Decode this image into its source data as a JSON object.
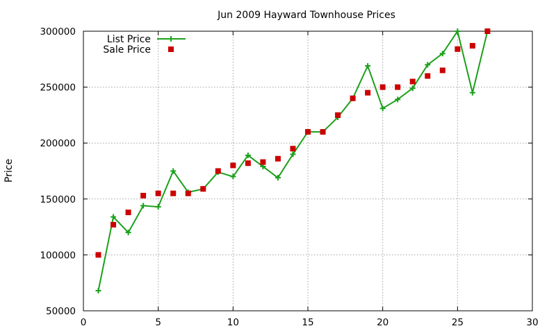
{
  "chart_data": {
    "type": "line",
    "title": "Jun 2009 Hayward Townhouse Prices",
    "xlabel": "",
    "ylabel": "Price",
    "xlim": [
      0,
      30
    ],
    "ylim": [
      50000,
      300000
    ],
    "x_ticks": [
      0,
      5,
      10,
      15,
      20,
      25,
      30
    ],
    "y_ticks": [
      50000,
      100000,
      150000,
      200000,
      250000,
      300000
    ],
    "grid": true,
    "legend_position": "top-left",
    "series": [
      {
        "name": "List Price",
        "style": "line-with-plus-markers",
        "color": "#1aa01a",
        "x": [
          1,
          2,
          3,
          4,
          5,
          6,
          7,
          8,
          9,
          10,
          11,
          12,
          13,
          14,
          15,
          16,
          17,
          18,
          19,
          20,
          21,
          22,
          23,
          24,
          25,
          26,
          27
        ],
        "y": [
          68000,
          134000,
          120000,
          144000,
          143000,
          175000,
          156000,
          159000,
          174000,
          170000,
          189000,
          179000,
          169000,
          190000,
          210000,
          210000,
          223000,
          240000,
          269000,
          231000,
          239000,
          249000,
          270000,
          280000,
          300000,
          245000,
          300000
        ]
      },
      {
        "name": "Sale Price",
        "style": "square-markers",
        "color": "#cc0000",
        "x": [
          1,
          2,
          3,
          4,
          5,
          6,
          7,
          8,
          9,
          10,
          11,
          12,
          13,
          14,
          15,
          16,
          17,
          18,
          19,
          20,
          21,
          22,
          23,
          24,
          25,
          26,
          27
        ],
        "y": [
          100000,
          127000,
          138000,
          153000,
          155000,
          155000,
          155000,
          159000,
          175000,
          180000,
          182000,
          183000,
          186000,
          195000,
          210000,
          210000,
          225000,
          240000,
          245000,
          250000,
          250000,
          255000,
          260000,
          265000,
          284000,
          287000,
          300000
        ]
      }
    ]
  }
}
